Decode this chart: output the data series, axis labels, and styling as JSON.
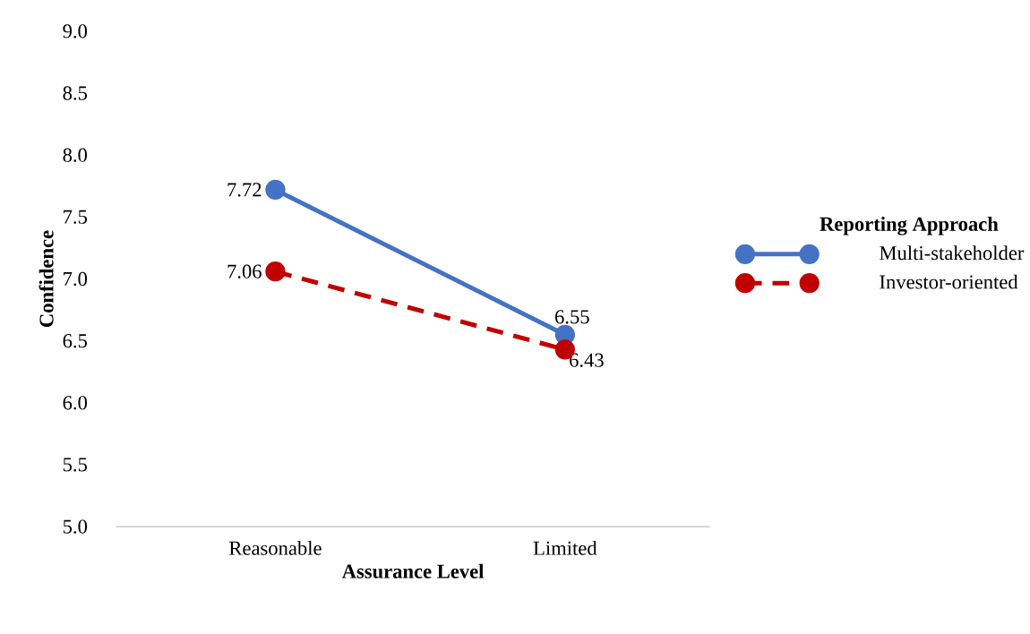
{
  "chart_data": {
    "type": "line",
    "xlabel": "Assurance Level",
    "ylabel": "Confidence",
    "legend_title": "Reporting Approach",
    "legend": "right",
    "marker": "circle",
    "data_labels": true,
    "categories": [
      "Reasonable",
      "Limited"
    ],
    "ylim": [
      5,
      9
    ],
    "yticks": [
      {
        "value": 5,
        "label": "5.0"
      },
      {
        "value": 5.5,
        "label": "5.5"
      },
      {
        "value": 6,
        "label": "6.0"
      },
      {
        "value": 6.5,
        "label": "6.5"
      },
      {
        "value": 7,
        "label": "7.0"
      },
      {
        "value": 7.5,
        "label": "7.5"
      },
      {
        "value": 8,
        "label": "8.0"
      },
      {
        "value": 8.5,
        "label": "8.5"
      },
      {
        "value": 9,
        "label": "9.0"
      }
    ],
    "series": [
      {
        "name": "Multi-stakeholder",
        "color": "#4472c4",
        "line_style": "solid",
        "values": [
          7.72,
          6.55
        ]
      },
      {
        "name": "Investor-oriented",
        "color": "#c00000",
        "line_style": "dashed",
        "values": [
          7.06,
          6.43
        ]
      }
    ]
  }
}
